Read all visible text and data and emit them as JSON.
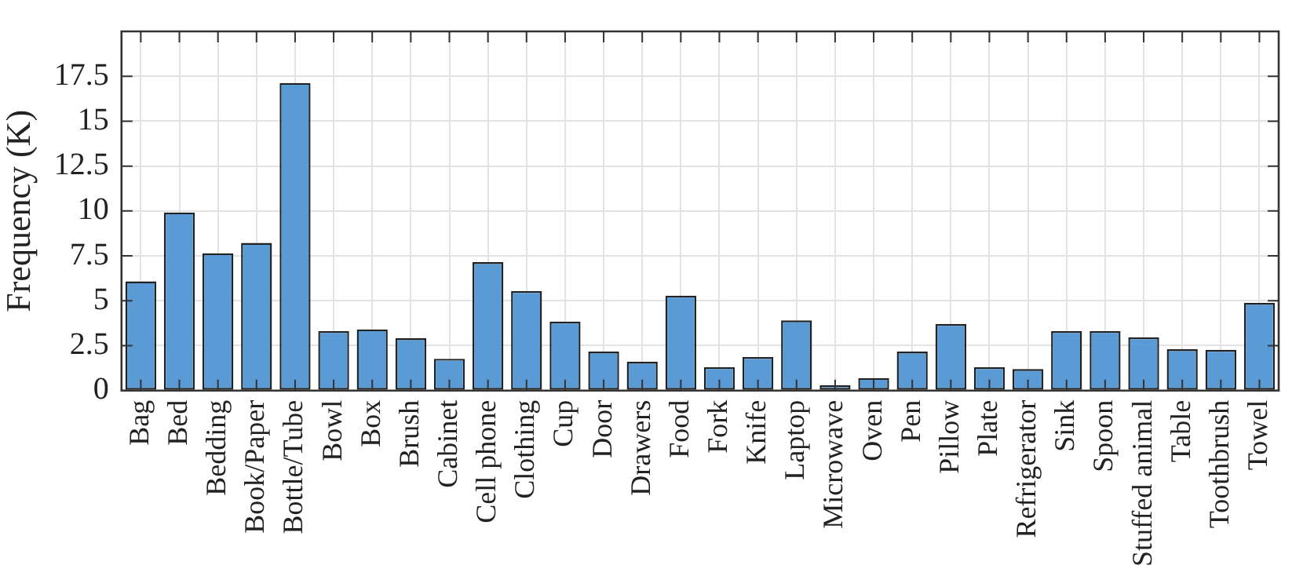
{
  "chart_data": {
    "type": "bar",
    "ylabel": "Frequency (K)",
    "categories": [
      "Bag",
      "Bed",
      "Bedding",
      "Book/Paper",
      "Bottle/Tube",
      "Bowl",
      "Box",
      "Brush",
      "Cabinet",
      "Cell phone",
      "Clothing",
      "Cup",
      "Door",
      "Drawers",
      "Food",
      "Fork",
      "Knife",
      "Laptop",
      "Microwave",
      "Oven",
      "Pen",
      "Pillow",
      "Plate",
      "Refrigerator",
      "Sink",
      "Spoon",
      "Stuffed animal",
      "Table",
      "Toothbrush",
      "Towel"
    ],
    "values": [
      6.08,
      9.92,
      7.65,
      8.22,
      17.13,
      3.31,
      3.41,
      2.91,
      1.77,
      7.15,
      5.54,
      3.84,
      2.17,
      1.6,
      5.28,
      1.3,
      1.87,
      3.91,
      0.3,
      0.7,
      2.17,
      3.71,
      1.3,
      1.2,
      3.31,
      3.31,
      2.97,
      2.3,
      2.27,
      4.88
    ],
    "color": "#5b9bd5",
    "ylim": [
      0,
      20
    ],
    "yticks": [
      0,
      2.5,
      5,
      7.5,
      10,
      12.5,
      15,
      17.5
    ],
    "grid": true
  }
}
